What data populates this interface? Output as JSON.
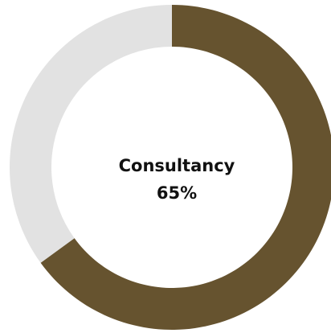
{
  "chart_data": {
    "type": "donut",
    "categories": [
      "Consultancy",
      null
    ],
    "values": [
      65,
      35
    ],
    "value_labels": [
      "65%",
      null
    ],
    "colors": [
      "#66532f",
      "#e2e2e2"
    ]
  }
}
